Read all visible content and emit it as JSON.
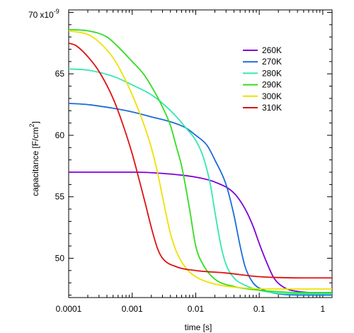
{
  "chart_data": {
    "type": "line",
    "title": "",
    "xlabel": "time [s]",
    "ylabel_main": "capacitance [F/cm",
    "ylabel_sup": "2",
    "ylabel_end": "]",
    "xscale": "log",
    "xlim": [
      0.0001,
      1.4
    ],
    "ylim": [
      46.8,
      70.2
    ],
    "y_multiplier_text": "x10",
    "y_multiplier_exp": "-9",
    "x_ticks": [
      {
        "value": 0.0001,
        "label": "0.0001"
      },
      {
        "value": 0.001,
        "label": "0.001"
      },
      {
        "value": 0.01,
        "label": "0.01"
      },
      {
        "value": 0.1,
        "label": "0.1"
      },
      {
        "value": 1,
        "label": "1"
      }
    ],
    "y_ticks": [
      {
        "value": 50,
        "label": "50"
      },
      {
        "value": 55,
        "label": "55"
      },
      {
        "value": 60,
        "label": "60"
      },
      {
        "value": 65,
        "label": "65"
      },
      {
        "value": 70,
        "label": "70"
      }
    ],
    "grid": false,
    "legend_position": "top-right",
    "series": [
      {
        "name": "260K",
        "color": "#7f00d8",
        "points": [
          [
            0.0001,
            57.0
          ],
          [
            0.0003,
            57.0
          ],
          [
            0.001,
            57.0
          ],
          [
            0.003,
            56.9
          ],
          [
            0.01,
            56.6
          ],
          [
            0.02,
            56.2
          ],
          [
            0.04,
            55.3
          ],
          [
            0.06,
            54.0
          ],
          [
            0.08,
            52.6
          ],
          [
            0.1,
            51.2
          ],
          [
            0.13,
            49.7
          ],
          [
            0.17,
            48.4
          ],
          [
            0.25,
            47.6
          ],
          [
            0.4,
            47.3
          ],
          [
            0.7,
            47.2
          ],
          [
            1.4,
            47.2
          ]
        ]
      },
      {
        "name": "270K",
        "color": "#1a6cd8",
        "points": [
          [
            0.0001,
            62.6
          ],
          [
            0.0002,
            62.5
          ],
          [
            0.0005,
            62.2
          ],
          [
            0.001,
            61.9
          ],
          [
            0.002,
            61.5
          ],
          [
            0.004,
            61.1
          ],
          [
            0.007,
            60.6
          ],
          [
            0.01,
            60.0
          ],
          [
            0.015,
            59.2
          ],
          [
            0.02,
            58.0
          ],
          [
            0.03,
            56.0
          ],
          [
            0.04,
            53.5
          ],
          [
            0.05,
            51.0
          ],
          [
            0.06,
            49.3
          ],
          [
            0.08,
            48.0
          ],
          [
            0.12,
            47.4
          ],
          [
            0.2,
            47.1
          ],
          [
            0.5,
            47.0
          ],
          [
            1.4,
            47.0
          ]
        ]
      },
      {
        "name": "280K",
        "color": "#33e8b0",
        "points": [
          [
            0.0001,
            65.4
          ],
          [
            0.0002,
            65.3
          ],
          [
            0.0005,
            64.8
          ],
          [
            0.001,
            64.1
          ],
          [
            0.002,
            63.3
          ],
          [
            0.003,
            62.6
          ],
          [
            0.005,
            61.5
          ],
          [
            0.007,
            60.6
          ],
          [
            0.01,
            59.6
          ],
          [
            0.013,
            58.3
          ],
          [
            0.017,
            56.0
          ],
          [
            0.02,
            53.8
          ],
          [
            0.025,
            51.0
          ],
          [
            0.03,
            49.5
          ],
          [
            0.04,
            48.4
          ],
          [
            0.06,
            47.8
          ],
          [
            0.1,
            47.4
          ],
          [
            0.3,
            47.1
          ],
          [
            1.4,
            47.1
          ]
        ]
      },
      {
        "name": "290K",
        "color": "#33dd22",
        "points": [
          [
            0.0001,
            68.6
          ],
          [
            0.0002,
            68.5
          ],
          [
            0.0004,
            68.0
          ],
          [
            0.0006,
            67.2
          ],
          [
            0.001,
            66.0
          ],
          [
            0.0015,
            65.0
          ],
          [
            0.002,
            64.0
          ],
          [
            0.003,
            62.3
          ],
          [
            0.004,
            60.8
          ],
          [
            0.005,
            59.0
          ],
          [
            0.006,
            57.5
          ],
          [
            0.008,
            54.0
          ],
          [
            0.01,
            51.0
          ],
          [
            0.013,
            49.5
          ],
          [
            0.02,
            48.3
          ],
          [
            0.04,
            47.7
          ],
          [
            0.1,
            47.4
          ],
          [
            0.5,
            47.2
          ],
          [
            1.4,
            47.2
          ]
        ]
      },
      {
        "name": "300K",
        "color": "#f0e000",
        "points": [
          [
            0.0001,
            68.5
          ],
          [
            0.0002,
            68.2
          ],
          [
            0.0003,
            67.6
          ],
          [
            0.0005,
            66.3
          ],
          [
            0.0007,
            65.0
          ],
          [
            0.001,
            63.3
          ],
          [
            0.0015,
            61.0
          ],
          [
            0.002,
            59.0
          ],
          [
            0.0025,
            57.0
          ],
          [
            0.003,
            55.0
          ],
          [
            0.004,
            52.0
          ],
          [
            0.005,
            50.5
          ],
          [
            0.007,
            49.2
          ],
          [
            0.01,
            48.5
          ],
          [
            0.02,
            47.9
          ],
          [
            0.05,
            47.6
          ],
          [
            0.2,
            47.5
          ],
          [
            1.4,
            47.5
          ]
        ]
      },
      {
        "name": "310K",
        "color": "#e01010",
        "points": [
          [
            0.0001,
            67.5
          ],
          [
            0.00013,
            67.3
          ],
          [
            0.0002,
            66.4
          ],
          [
            0.0003,
            65.2
          ],
          [
            0.0005,
            63.0
          ],
          [
            0.0007,
            61.0
          ],
          [
            0.001,
            58.5
          ],
          [
            0.0013,
            56.3
          ],
          [
            0.0016,
            54.5
          ],
          [
            0.002,
            52.5
          ],
          [
            0.0025,
            50.8
          ],
          [
            0.003,
            50.0
          ],
          [
            0.005,
            49.3
          ],
          [
            0.01,
            49.0
          ],
          [
            0.03,
            48.8
          ],
          [
            0.1,
            48.5
          ],
          [
            0.5,
            48.4
          ],
          [
            1.4,
            48.4
          ]
        ]
      }
    ]
  }
}
